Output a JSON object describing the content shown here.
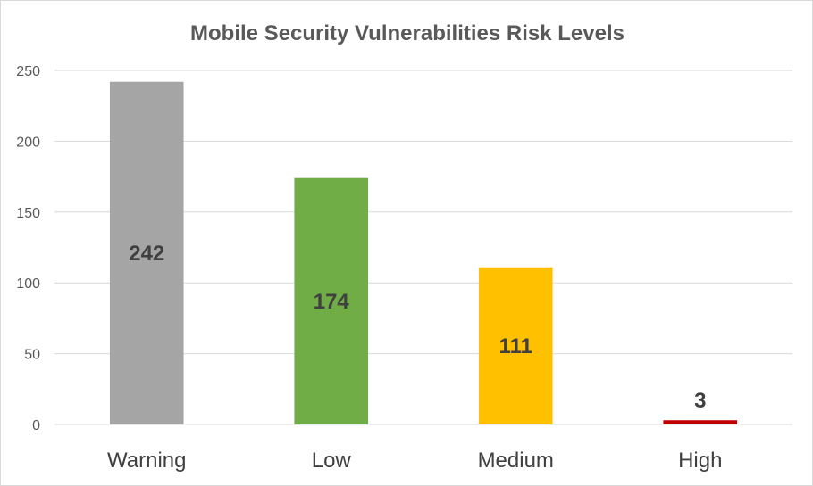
{
  "chart_data": {
    "type": "bar",
    "title": "Mobile Security Vulnerabilities Risk Levels",
    "xlabel": "",
    "ylabel": "",
    "categories": [
      "Warning",
      "Low",
      "Medium",
      "High"
    ],
    "values": [
      242,
      174,
      111,
      3
    ],
    "colors": [
      "#a5a5a5",
      "#70ad47",
      "#ffc000",
      "#c00000"
    ],
    "ylim": [
      0,
      250
    ],
    "yticks": [
      "0",
      "50",
      "100",
      "150",
      "200",
      "250"
    ],
    "grid": true,
    "legend": "none",
    "data_labels": [
      "242",
      "174",
      "111",
      "3"
    ]
  }
}
